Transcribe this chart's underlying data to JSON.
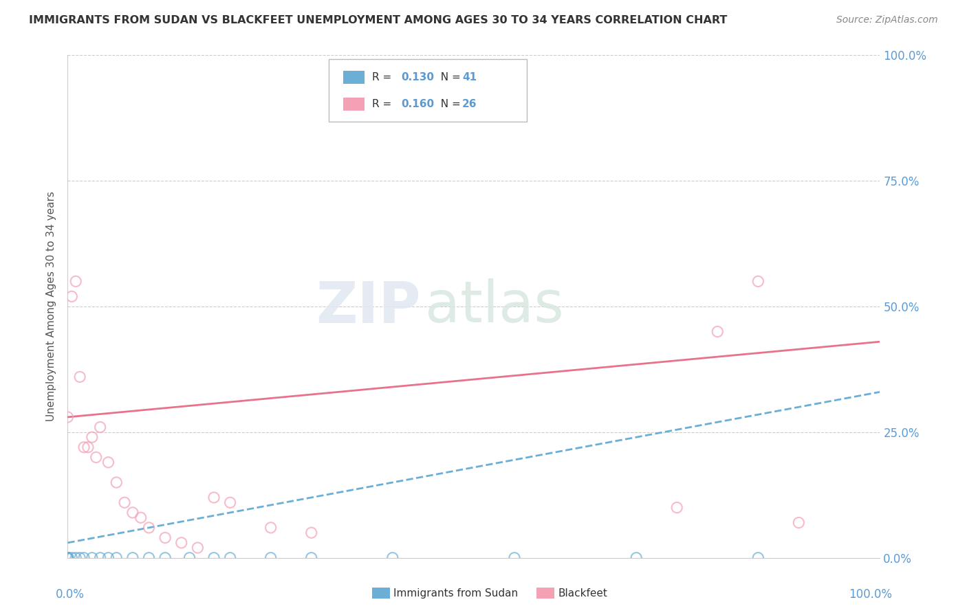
{
  "title": "IMMIGRANTS FROM SUDAN VS BLACKFEET UNEMPLOYMENT AMONG AGES 30 TO 34 YEARS CORRELATION CHART",
  "source": "Source: ZipAtlas.com",
  "ylabel": "Unemployment Among Ages 30 to 34 years",
  "xlim": [
    0,
    100
  ],
  "ylim": [
    0,
    100
  ],
  "yticks": [
    0,
    25,
    50,
    75,
    100
  ],
  "ytick_labels": [
    "0.0%",
    "25.0%",
    "50.0%",
    "75.0%",
    "100.0%"
  ],
  "color_blue": "#6baed6",
  "color_pink": "#f4a0b5",
  "color_pink_line": "#e8728a",
  "watermark_zip": "ZIP",
  "watermark_atlas": "atlas",
  "sudan_x": [
    0.0,
    0.0,
    0.0,
    0.0,
    0.0,
    0.0,
    0.0,
    0.0,
    0.0,
    0.0,
    0.0,
    0.0,
    0.0,
    0.0,
    0.0,
    0.0,
    0.0,
    0.0,
    0.0,
    0.0,
    0.0,
    0.5,
    1.0,
    1.5,
    2.0,
    3.0,
    4.0,
    5.0,
    6.0,
    8.0,
    10.0,
    12.0,
    15.0,
    18.0,
    20.0,
    25.0,
    30.0,
    40.0,
    55.0,
    70.0,
    85.0
  ],
  "sudan_y": [
    0.0,
    0.0,
    0.0,
    0.0,
    0.0,
    0.0,
    0.0,
    0.0,
    0.0,
    0.0,
    0.0,
    0.0,
    0.0,
    0.0,
    0.0,
    0.0,
    0.0,
    0.0,
    0.0,
    0.0,
    0.0,
    0.0,
    0.0,
    0.0,
    0.0,
    0.0,
    0.0,
    0.0,
    0.0,
    0.0,
    0.0,
    0.0,
    0.0,
    0.0,
    0.0,
    0.0,
    0.0,
    0.0,
    0.0,
    0.0,
    0.0
  ],
  "blackfeet_x": [
    0.0,
    0.5,
    1.0,
    1.5,
    2.0,
    2.5,
    3.0,
    3.5,
    4.0,
    5.0,
    6.0,
    7.0,
    8.0,
    9.0,
    10.0,
    12.0,
    14.0,
    16.0,
    18.0,
    20.0,
    25.0,
    30.0,
    75.0,
    80.0,
    85.0,
    90.0
  ],
  "blackfeet_y": [
    28.0,
    52.0,
    55.0,
    36.0,
    22.0,
    22.0,
    24.0,
    20.0,
    26.0,
    19.0,
    15.0,
    11.0,
    9.0,
    8.0,
    6.0,
    4.0,
    3.0,
    2.0,
    12.0,
    11.0,
    6.0,
    5.0,
    10.0,
    45.0,
    55.0,
    7.0
  ],
  "blue_line_start_y": 3.0,
  "blue_line_end_y": 33.0,
  "pink_line_start_y": 28.0,
  "pink_line_end_y": 43.0
}
